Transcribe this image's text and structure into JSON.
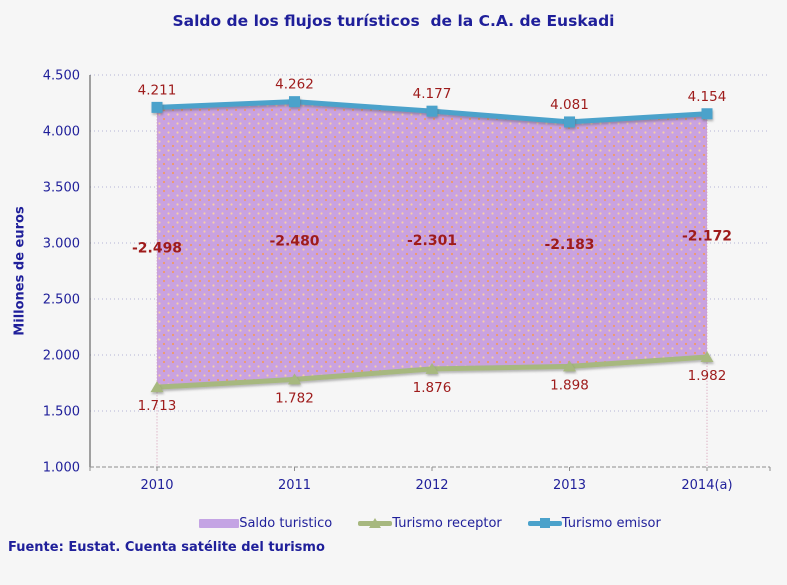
{
  "window": {
    "background": "#f6f6f6"
  },
  "title": "Saldo de los flujos turísticos  de la C.A. de Euskadi",
  "source_note": "Fuente: Eustat. Cuenta satélite del turismo",
  "colors": {
    "text_navy": "#1f1f9a",
    "data_label_red": "#9e1b1b",
    "emisor_line": "#4ba2cb",
    "receptor_line": "#a7b87f",
    "saldo_fill_base": "#c9a2e0",
    "saldo_fill_dot": "#ef9a68",
    "saldo_fill_dot_light": "#f7cfa6",
    "legend_saldo_swatch": "#c4a4e4",
    "gridline": "#b4b4d6",
    "y_axis_line": "#4a4a4a",
    "x_axis_line": "#8f8f8f",
    "edge_dropline": "#d49ab4"
  },
  "chart_data": {
    "type": "area",
    "title": "Saldo de los flujos turísticos  de la C.A. de Euskadi",
    "x": [
      "2010",
      "2011",
      "2012",
      "2013",
      "2014(a)"
    ],
    "series": [
      {
        "name": "Saldo turistico",
        "render": "area-band-between-lines",
        "values": [
          -2498,
          -2480,
          -2301,
          -2183,
          -2172
        ],
        "labels": [
          "-2.498",
          "-2.480",
          "-2.301",
          "-2.183",
          "-2.172"
        ]
      },
      {
        "name": "Turismo receptor",
        "render": "line",
        "marker": "triangle",
        "values": [
          1713,
          1782,
          1876,
          1898,
          1982
        ],
        "labels": [
          "1.713",
          "1.782",
          "1.876",
          "1.898",
          "1.982"
        ]
      },
      {
        "name": "Turismo emisor",
        "render": "line",
        "marker": "square",
        "values": [
          4211,
          4262,
          4177,
          4081,
          4154
        ],
        "labels": [
          "4.211",
          "4.262",
          "4.177",
          "4.081",
          "4.154"
        ]
      }
    ],
    "xlabel": "",
    "ylabel": "Millones  de euros",
    "ylim": [
      1000,
      4500
    ],
    "ytick_step": 500,
    "y_tick_labels": [
      "1.000",
      "1.500",
      "2.000",
      "2.500",
      "3.000",
      "3.500",
      "4.000",
      "4.500"
    ],
    "grid": true,
    "gridline_style": "dotted",
    "legend_position": "bottom"
  },
  "legend": {
    "items": [
      {
        "label": "Saldo turistico"
      },
      {
        "label": "Turismo receptor"
      },
      {
        "label": "Turismo emisor"
      }
    ]
  }
}
